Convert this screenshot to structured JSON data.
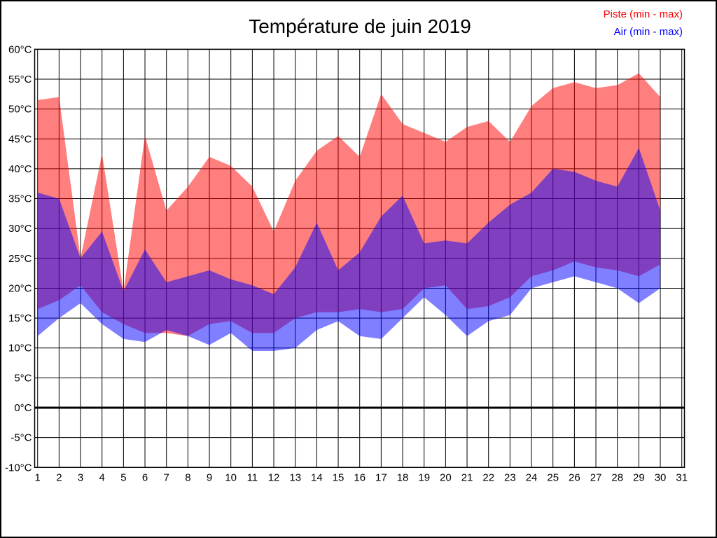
{
  "title": "Température de juin 2019",
  "legend": {
    "piste": {
      "label": "Piste (min - max)",
      "color": "#ff0000"
    },
    "air": {
      "label": "Air (min - max)",
      "color": "#0000ff"
    }
  },
  "chart_data": {
    "type": "area",
    "title": "Température de juin 2019",
    "days": [
      1,
      2,
      3,
      4,
      5,
      6,
      7,
      8,
      9,
      10,
      11,
      12,
      13,
      14,
      15,
      16,
      17,
      18,
      19,
      20,
      21,
      22,
      23,
      24,
      25,
      26,
      27,
      28,
      29,
      30
    ],
    "bands": [
      {
        "name": "Piste (min - max)",
        "fill": "rgba(255,0,0,0.5)",
        "max": [
          51.5,
          52,
          25,
          42.5,
          19.5,
          45.5,
          33,
          37,
          42,
          40.5,
          37,
          29.5,
          38,
          43,
          45.5,
          42,
          52.5,
          47.5,
          46,
          44.5,
          47,
          48,
          44.5,
          50.5,
          53.5,
          54.5,
          53.5,
          54,
          56,
          52
        ],
        "min": [
          16.5,
          18,
          20.5,
          16,
          14,
          12.5,
          12.5,
          12,
          14,
          14.5,
          12.5,
          12.5,
          15,
          16,
          16,
          16.5,
          16,
          16.5,
          20,
          20.5,
          16.5,
          17,
          18.5,
          22,
          23,
          24.5,
          23.5,
          23,
          22,
          24
        ]
      },
      {
        "name": "Air (min - max)",
        "fill": "rgba(0,0,255,0.5)",
        "max": [
          36,
          35,
          25,
          29.5,
          19.5,
          26.5,
          21,
          22,
          23,
          21.5,
          20.5,
          19,
          23.5,
          31,
          23,
          26,
          32,
          35.5,
          27.5,
          28,
          27.5,
          31,
          34,
          36,
          40,
          39.5,
          38,
          37,
          43.5,
          33
        ],
        "min": [
          12,
          15,
          17.5,
          14,
          11.5,
          11,
          13,
          12,
          10.5,
          12.5,
          9.5,
          9.5,
          10,
          13,
          14.5,
          12,
          11.5,
          15,
          18.5,
          15.5,
          12,
          14.5,
          15.5,
          20,
          21,
          22,
          21,
          20,
          17.5,
          20
        ]
      }
    ],
    "x_ticks": {
      "values": [
        1,
        2,
        3,
        4,
        5,
        6,
        7,
        8,
        9,
        10,
        11,
        12,
        13,
        14,
        15,
        16,
        17,
        18,
        19,
        20,
        21,
        22,
        23,
        24,
        25,
        26,
        27,
        28,
        29,
        30,
        31
      ],
      "labels": [
        "1",
        "2",
        "3",
        "4",
        "5",
        "6",
        "7",
        "8",
        "9",
        "10",
        "11",
        "12",
        "13",
        "14",
        "15",
        "16",
        "17",
        "18",
        "19",
        "20",
        "21",
        "22",
        "23",
        "24",
        "25",
        "26",
        "27",
        "28",
        "29",
        "30",
        "31"
      ]
    },
    "y_ticks": {
      "values": [
        60,
        55,
        50,
        45,
        40,
        35,
        30,
        25,
        20,
        15,
        10,
        5,
        0,
        -5,
        -10
      ],
      "labels": [
        "60°C",
        "55°C",
        "50°C",
        "45°C",
        "40°C",
        "35°C",
        "30°C",
        "25°C",
        "20°C",
        "15°C",
        "10°C",
        "5°C",
        "0°C",
        "-5°C",
        "-10°C"
      ]
    },
    "xlim": [
      1,
      31
    ],
    "ylim": [
      -10,
      60
    ],
    "grid": true,
    "zero_line_width": 3,
    "colors": {
      "grid": "#000000",
      "frame": "#000000",
      "text": "#000000",
      "background": "#ffffff"
    }
  }
}
